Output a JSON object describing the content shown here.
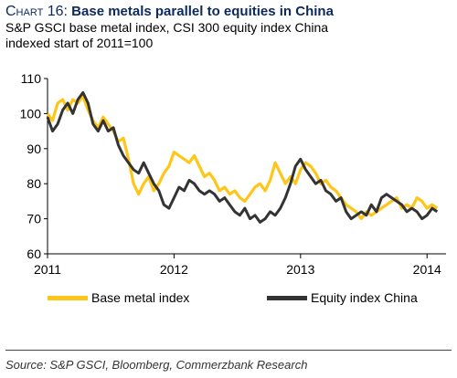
{
  "header": {
    "title_prefix": "Chart 16:",
    "title": "Base metals parallel to equities in China",
    "subtitle_line1": "S&P GSCI base metal index, CSI 300 equity index China",
    "subtitle_line2": "indexed start of 2011=100"
  },
  "source": "Source: S&P GSCI, Bloomberg, Commerzbank Research",
  "colors": {
    "base_metal": "#FFC61A",
    "equity": "#333333",
    "title": "#0b2a5b"
  },
  "chart_data": {
    "type": "line",
    "title": "Base metals parallel to equities in China",
    "subtitle": "S&P GSCI base metal index, CSI 300 equity index China indexed start of 2011=100",
    "xlabel": "",
    "ylabel": "",
    "xlim": [
      2011.0,
      2014.15
    ],
    "ylim": [
      60,
      110
    ],
    "x_ticks": [
      2011,
      2012,
      2013,
      2014
    ],
    "y_ticks": [
      60,
      70,
      80,
      90,
      100,
      110
    ],
    "grid": false,
    "legend_position": "bottom",
    "series": [
      {
        "name": "Base metal index",
        "color": "#FFC61A",
        "x": [
          2011.0,
          2011.04,
          2011.08,
          2011.12,
          2011.16,
          2011.2,
          2011.24,
          2011.28,
          2011.32,
          2011.36,
          2011.4,
          2011.44,
          2011.48,
          2011.52,
          2011.56,
          2011.6,
          2011.64,
          2011.68,
          2011.72,
          2011.76,
          2011.8,
          2011.84,
          2011.88,
          2011.92,
          2011.96,
          2012.0,
          2012.04,
          2012.08,
          2012.12,
          2012.16,
          2012.2,
          2012.24,
          2012.28,
          2012.32,
          2012.36,
          2012.4,
          2012.44,
          2012.48,
          2012.52,
          2012.56,
          2012.6,
          2012.64,
          2012.68,
          2012.72,
          2012.76,
          2012.8,
          2012.84,
          2012.88,
          2012.92,
          2012.96,
          2013.0,
          2013.04,
          2013.08,
          2013.12,
          2013.16,
          2013.2,
          2013.24,
          2013.28,
          2013.32,
          2013.36,
          2013.4,
          2013.44,
          2013.48,
          2013.52,
          2013.56,
          2013.6,
          2013.64,
          2013.68,
          2013.72,
          2013.76,
          2013.8,
          2013.84,
          2013.88,
          2013.92,
          2013.96,
          2014.0,
          2014.04,
          2014.08
        ],
        "values": [
          100,
          98,
          103,
          104,
          101,
          104,
          103,
          105,
          101,
          98,
          96,
          99,
          97,
          95,
          92,
          93,
          87,
          80,
          77,
          80,
          82,
          78,
          80,
          83,
          85,
          89,
          88,
          87,
          86,
          88,
          85,
          82,
          83,
          81,
          78,
          79,
          77,
          78,
          76,
          75,
          77,
          79,
          80,
          78,
          81,
          86,
          83,
          80,
          82,
          80,
          84,
          86,
          85,
          83,
          80,
          81,
          79,
          78,
          76,
          74,
          73,
          72,
          70,
          72,
          71,
          72,
          73,
          74,
          75,
          76,
          73,
          74,
          73,
          76,
          75,
          73,
          74,
          73
        ]
      },
      {
        "name": "Equity index China",
        "color": "#333333",
        "x": [
          2011.0,
          2011.04,
          2011.08,
          2011.12,
          2011.16,
          2011.2,
          2011.24,
          2011.28,
          2011.32,
          2011.36,
          2011.4,
          2011.44,
          2011.48,
          2011.52,
          2011.56,
          2011.6,
          2011.64,
          2011.68,
          2011.72,
          2011.76,
          2011.8,
          2011.84,
          2011.88,
          2011.92,
          2011.96,
          2012.0,
          2012.04,
          2012.08,
          2012.12,
          2012.16,
          2012.2,
          2012.24,
          2012.28,
          2012.32,
          2012.36,
          2012.4,
          2012.44,
          2012.48,
          2012.52,
          2012.56,
          2012.6,
          2012.64,
          2012.68,
          2012.72,
          2012.76,
          2012.8,
          2012.84,
          2012.88,
          2012.92,
          2012.96,
          2013.0,
          2013.04,
          2013.08,
          2013.12,
          2013.16,
          2013.2,
          2013.24,
          2013.28,
          2013.32,
          2013.36,
          2013.4,
          2013.44,
          2013.48,
          2013.52,
          2013.56,
          2013.6,
          2013.64,
          2013.68,
          2013.72,
          2013.76,
          2013.8,
          2013.84,
          2013.88,
          2013.92,
          2013.96,
          2014.0,
          2014.04,
          2014.08
        ],
        "values": [
          99,
          95,
          97,
          101,
          103,
          100,
          104,
          106,
          103,
          97,
          95,
          98,
          95,
          96,
          91,
          88,
          86,
          84,
          83,
          86,
          83,
          80,
          78,
          74,
          73,
          76,
          79,
          78,
          81,
          80,
          78,
          77,
          78,
          77,
          75,
          76,
          74,
          72,
          71,
          73,
          70,
          71,
          69,
          70,
          72,
          71,
          73,
          76,
          80,
          85,
          87,
          84,
          82,
          80,
          81,
          78,
          77,
          75,
          76,
          72,
          70,
          71,
          72,
          71,
          74,
          72,
          76,
          77,
          76,
          75,
          74,
          72,
          73,
          72,
          70,
          71,
          73,
          72
        ]
      }
    ]
  }
}
